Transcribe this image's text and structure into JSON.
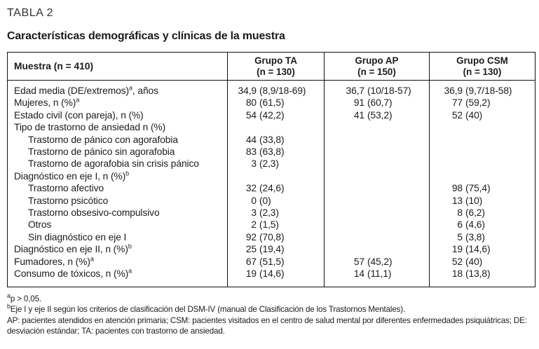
{
  "table_label": "TABLA 2",
  "title": "Características demográficas y clínicas de la muestra",
  "table": {
    "header": {
      "col0": "Muestra (n = 410)",
      "groups": [
        {
          "line1": "Grupo TA",
          "line2": "(n = 130)"
        },
        {
          "line1": "Grupo AP",
          "line2": "(n = 150)"
        },
        {
          "line1": "Grupo CSM",
          "line2": "(n = 130)"
        }
      ]
    },
    "rows": [
      {
        "label": "Edad media (DE/extremos)",
        "sup": "a",
        "post": ", años",
        "indent": false,
        "values": [
          "34,9 (8,9/18-69)",
          "36,7 (10/18-57)",
          "36,9 (9,7/18-58)"
        ]
      },
      {
        "label": "Mujeres, n (%)",
        "sup": "a",
        "post": "",
        "indent": false,
        "values": [
          "80 (61,5)",
          "91 (60,7)",
          "77 (59,2)"
        ]
      },
      {
        "label": "Estado civil (con pareja), n (%)",
        "sup": "",
        "post": "",
        "indent": false,
        "values": [
          "54 (42,2)",
          "41 (53,2)",
          "52 (40)"
        ]
      },
      {
        "label": "Tipo de trastorno de ansiedad n (%)",
        "sup": "",
        "post": "",
        "indent": false,
        "values": [
          "",
          "",
          ""
        ]
      },
      {
        "label": "Trastorno de pánico con agorafobia",
        "sup": "",
        "post": "",
        "indent": true,
        "values": [
          "44 (33,8)",
          "",
          ""
        ]
      },
      {
        "label": "Trastorno de pánico sin agorafobia",
        "sup": "",
        "post": "",
        "indent": true,
        "values": [
          "83 (63,8)",
          "",
          ""
        ]
      },
      {
        "label": "Trastorno de agorafobia sin crisis pánico",
        "sup": "",
        "post": "",
        "indent": true,
        "values": [
          "3 (2,3)",
          "",
          ""
        ]
      },
      {
        "label": "Diagnóstico en eje I, n (%)",
        "sup": "b",
        "post": "",
        "indent": false,
        "values": [
          "",
          "",
          ""
        ]
      },
      {
        "label": "Trastorno afectivo",
        "sup": "",
        "post": "",
        "indent": true,
        "values": [
          "32 (24,6)",
          "",
          "98 (75,4)"
        ]
      },
      {
        "label": "Trastorno psicótico",
        "sup": "",
        "post": "",
        "indent": true,
        "values": [
          "0 (0)",
          "",
          "13 (10)"
        ]
      },
      {
        "label": "Trastorno obsesivo-compulsivo",
        "sup": "",
        "post": "",
        "indent": true,
        "values": [
          "3 (2,3)",
          "",
          "8 (6,2)"
        ]
      },
      {
        "label": "Otros",
        "sup": "",
        "post": "",
        "indent": true,
        "values": [
          "2 (1,5)",
          "",
          "6 (4,6)"
        ]
      },
      {
        "label": "Sin diagnóstico en eje I",
        "sup": "",
        "post": "",
        "indent": true,
        "values": [
          "92 (70,8)",
          "",
          "5 (3,8)"
        ]
      },
      {
        "label": "Diagnóstico en eje II, n (%)",
        "sup": "b",
        "post": "",
        "indent": false,
        "values": [
          "25 (19,4)",
          "",
          "19 (14,6)"
        ]
      },
      {
        "label": "Fumadores, n (%)",
        "sup": "a",
        "post": "",
        "indent": false,
        "values": [
          "67 (51,5)",
          "57 (45,2)",
          "52 (40)"
        ]
      },
      {
        "label": "Consumo de tóxicos, n (%)",
        "sup": "a",
        "post": "",
        "indent": false,
        "values": [
          "19 (14,6)",
          "14 (11,1)",
          "18 (13,8)"
        ]
      }
    ]
  },
  "footnotes": [
    {
      "sup": "a",
      "text": "p > 0,05."
    },
    {
      "sup": "b",
      "text": "Eje I y eje II según los criterios de clasificación del DSM-IV (manual de Clasificación de los Trastornos Mentales)."
    },
    {
      "sup": "",
      "text": "AP: pacientes atendidos en atención primaria; CSM: pacientes visitados en el centro de salud mental por diferentes enfermedades psiquiátricas; DE: desviación estándar; TA: pacientes con trastorno de ansiedad."
    }
  ]
}
